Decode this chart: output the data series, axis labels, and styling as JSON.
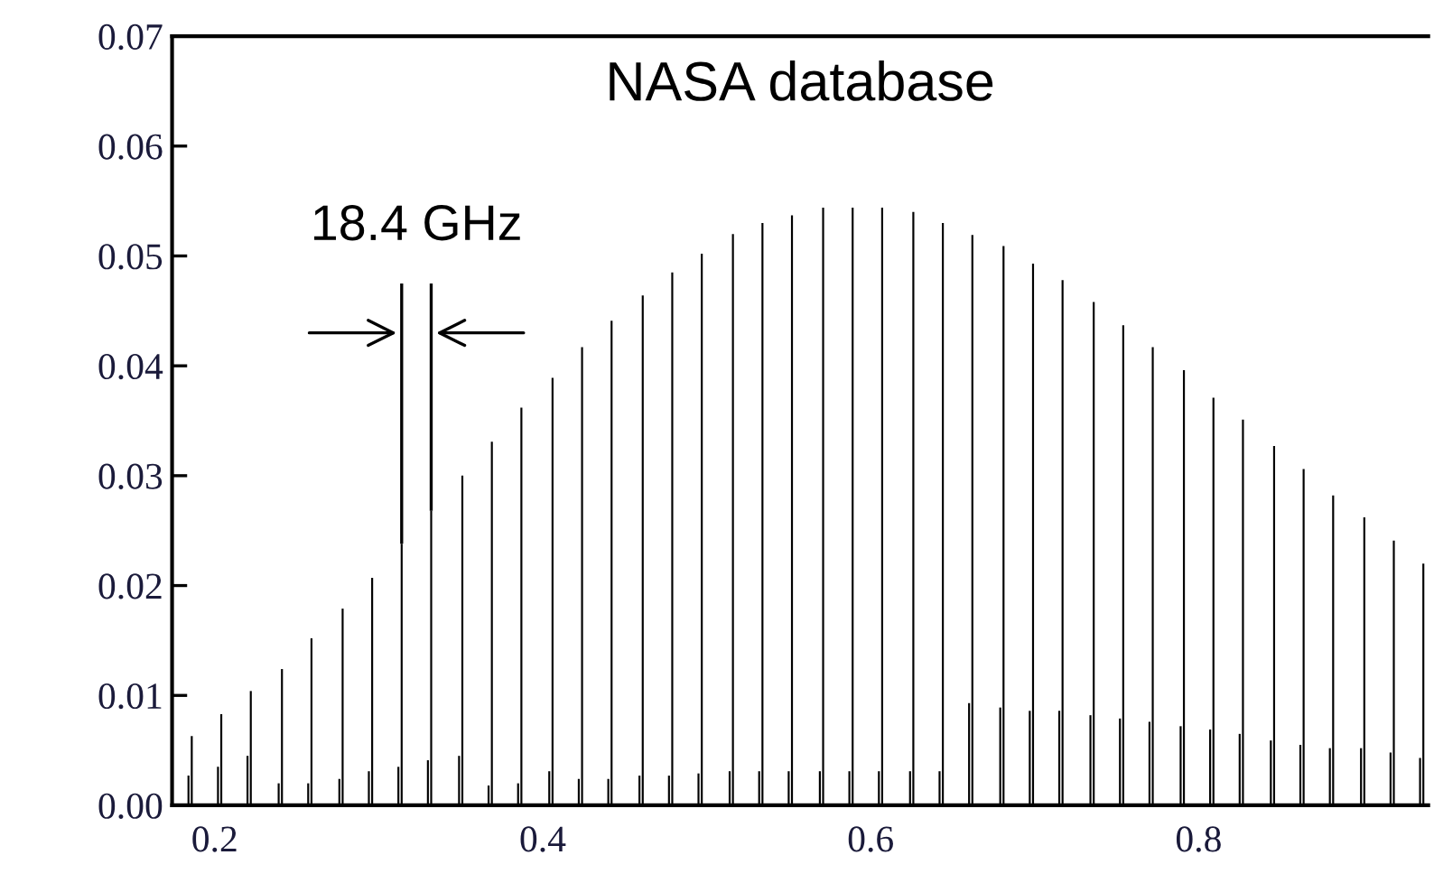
{
  "chart_data": {
    "type": "bar",
    "annotations": [
      {
        "text": "NASA database"
      },
      {
        "text": "18.4 GHz"
      }
    ],
    "series": [
      {
        "color": "#000000",
        "x": [
          0.184,
          0.202,
          0.22,
          0.239,
          0.257,
          0.276,
          0.294,
          0.312,
          0.33,
          0.349,
          0.367,
          0.385,
          0.404,
          0.422,
          0.44,
          0.459,
          0.477,
          0.495,
          0.514,
          0.532,
          0.55,
          0.569,
          0.587,
          0.605,
          0.624,
          0.642,
          0.66,
          0.679,
          0.697,
          0.715,
          0.734,
          0.752,
          0.77,
          0.789,
          0.807,
          0.825,
          0.844,
          0.862,
          0.88,
          0.899,
          0.917,
          0.935
        ],
        "values": [
          0.0027,
          0.0035,
          0.0045,
          0.002,
          0.002,
          0.0024,
          0.0031,
          0.0035,
          0.0041,
          0.0045,
          0.0018,
          0.002,
          0.0031,
          0.0024,
          0.0024,
          0.0027,
          0.0027,
          0.0029,
          0.0031,
          0.0031,
          0.0031,
          0.0031,
          0.0031,
          0.0031,
          0.0031,
          0.0031,
          0.0093,
          0.0089,
          0.0086,
          0.0086,
          0.0082,
          0.0079,
          0.0076,
          0.0072,
          0.0069,
          0.0065,
          0.0059,
          0.0055,
          0.0052,
          0.0052,
          0.0048,
          0.0043
        ]
      },
      {
        "color": "#000000",
        "x": [
          0.186,
          0.204,
          0.222,
          0.241,
          0.259,
          0.278,
          0.296,
          0.314,
          0.332,
          0.351,
          0.369,
          0.387,
          0.406,
          0.424,
          0.442,
          0.461,
          0.479,
          0.497,
          0.516,
          0.534,
          0.552,
          0.571,
          0.589,
          0.607,
          0.626,
          0.644,
          0.662,
          0.681,
          0.699,
          0.717,
          0.736,
          0.754,
          0.772,
          0.791,
          0.809,
          0.827,
          0.846,
          0.864,
          0.882,
          0.901,
          0.919,
          0.937
        ],
        "values": [
          0.0063,
          0.0083,
          0.0104,
          0.0124,
          0.0152,
          0.0179,
          0.0207,
          0.0238,
          0.0268,
          0.03,
          0.0331,
          0.0362,
          0.0389,
          0.0417,
          0.0441,
          0.0464,
          0.0485,
          0.0502,
          0.052,
          0.053,
          0.0537,
          0.0544,
          0.0544,
          0.0544,
          0.054,
          0.053,
          0.0519,
          0.0509,
          0.0493,
          0.0478,
          0.0458,
          0.0437,
          0.0417,
          0.0396,
          0.0371,
          0.0351,
          0.0327,
          0.0306,
          0.0282,
          0.0262,
          0.0241,
          0.022
        ]
      }
    ],
    "xlim": [
      0.174,
      0.94
    ],
    "ylim": [
      0,
      0.07
    ],
    "xticks": [
      0.2,
      0.4,
      0.6,
      0.8
    ],
    "yticks": [
      {
        "value": 0,
        "label": "0.00"
      },
      {
        "value": 0.01,
        "label": "0.01"
      },
      {
        "value": 0.02,
        "label": "0.02"
      },
      {
        "value": 0.03,
        "label": "0.03"
      },
      {
        "value": 0.04,
        "label": "0.04"
      },
      {
        "value": 0.05,
        "label": "0.05"
      },
      {
        "value": 0.06,
        "label": "0.06"
      },
      {
        "value": 0.07,
        "label": "0.07"
      }
    ],
    "grid": false,
    "legend": false
  }
}
